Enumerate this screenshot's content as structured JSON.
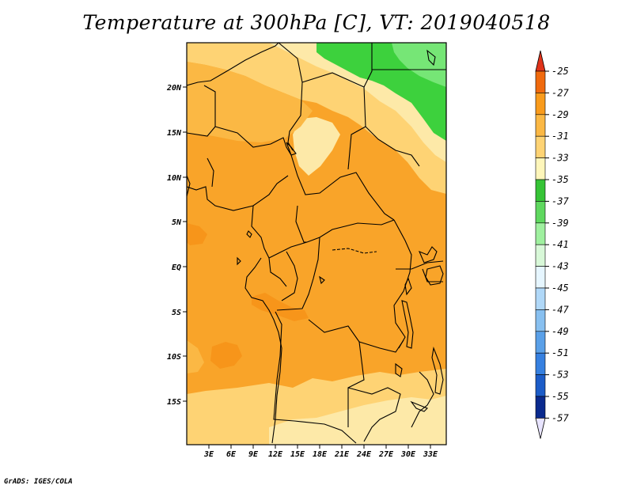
{
  "title": "Temperature at 300hPa [C], VT: 2019040518",
  "footer": "GrADS: IGES/COLA",
  "map": {
    "lat_labels": [
      "20N",
      "15N",
      "10N",
      "5N",
      "EQ",
      "5S",
      "10S",
      "15S"
    ],
    "lon_labels": [
      "3E",
      "6E",
      "9E",
      "12E",
      "15E",
      "18E",
      "21E",
      "24E",
      "27E",
      "30E",
      "33E"
    ],
    "colors": {
      "green_dark": "#3dd13d",
      "green_mid": "#76e676",
      "yellow_pale": "#fde9a8",
      "yellow_light": "#fed374",
      "orange_light": "#fbb844",
      "orange": "#f9a429",
      "border": "#000000"
    }
  },
  "colorbar": {
    "labels": [
      "-25",
      "-27",
      "-29",
      "-31",
      "-33",
      "-35",
      "-37",
      "-39",
      "-41",
      "-43",
      "-45",
      "-47",
      "-49",
      "-51",
      "-53",
      "-55",
      "-57"
    ],
    "colors": [
      "#e03a12",
      "#f06a0e",
      "#f99b1c",
      "#fbb844",
      "#fed374",
      "#fef6ba",
      "#36c436",
      "#5fd85f",
      "#9ff09f",
      "#d8f8d8",
      "#e6f6ff",
      "#b0d8f8",
      "#88c0f0",
      "#5aa0e8",
      "#3680e0",
      "#1c5cc8",
      "#0a2a8e",
      "#061a60"
    ],
    "top_arrow_color": "#e0331a",
    "bottom_arrow_color": "#e8e4ff"
  }
}
